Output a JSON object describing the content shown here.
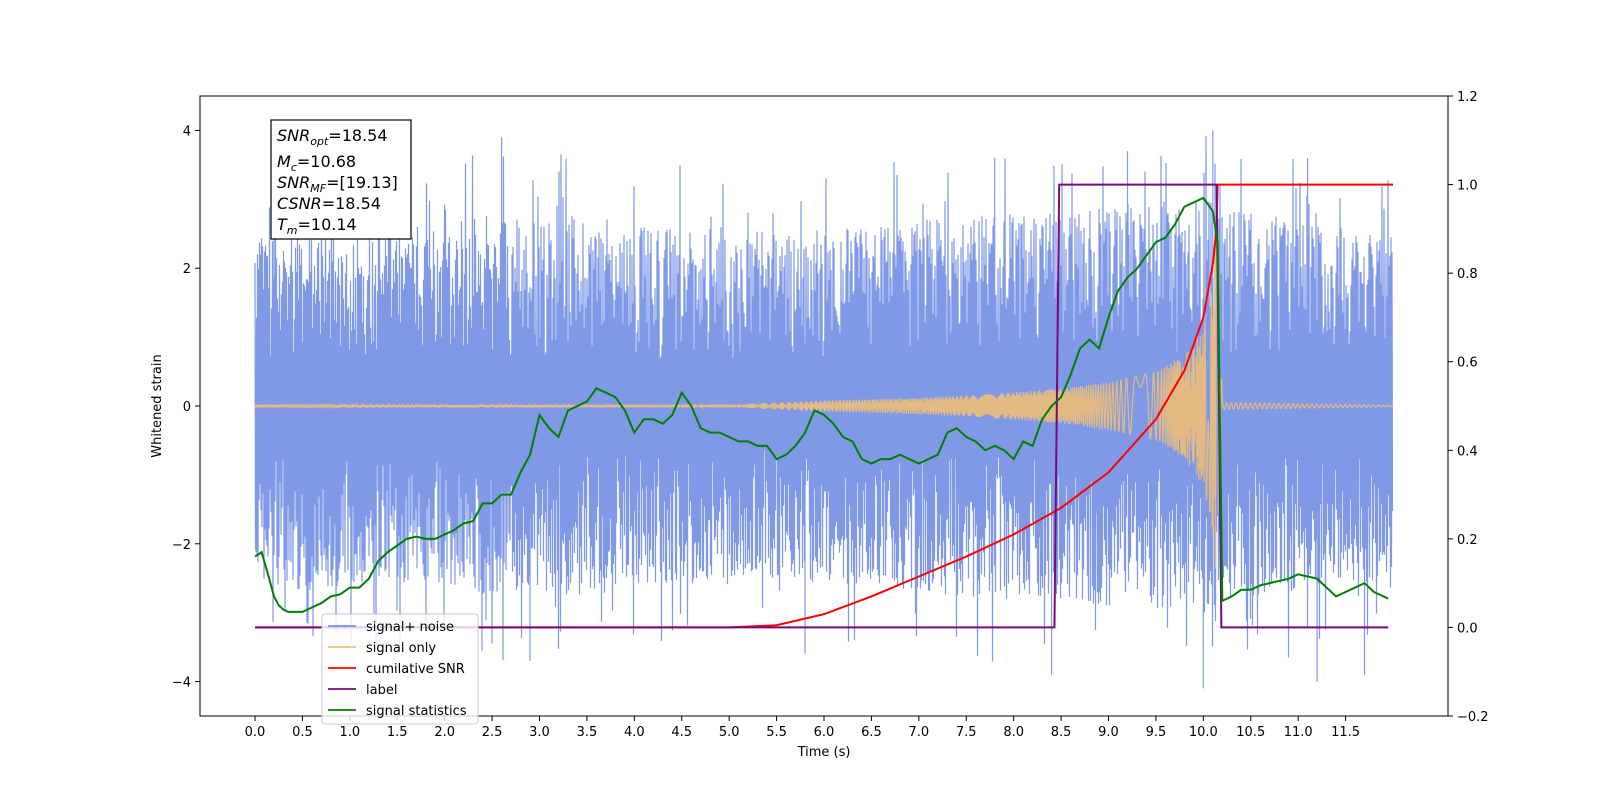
{
  "chart_data": {
    "type": "line",
    "xlabel": "Time (s)",
    "ylabel": "Whitened strain",
    "ylim_left": [
      -4.5,
      4.5
    ],
    "ylim_right": [
      -0.2,
      1.2
    ],
    "xlim": [
      -0.58,
      12.58
    ],
    "x_ticks": [
      "0.0",
      "0.5",
      "1.0",
      "1.5",
      "2.0",
      "2.5",
      "3.0",
      "3.5",
      "4.0",
      "4.5",
      "5.0",
      "5.5",
      "6.0",
      "6.5",
      "7.0",
      "7.5",
      "8.0",
      "8.5",
      "9.0",
      "9.5",
      "10.0",
      "10.5",
      "11.0",
      "11.5"
    ],
    "y_ticks_left": [
      "4",
      "2",
      "0",
      "−2",
      "−4"
    ],
    "y_ticks_right": [
      "1.2",
      "1.0",
      "0.8",
      "0.6",
      "0.4",
      "0.2",
      "0.0",
      "−0.2"
    ],
    "info_box": {
      "snr_opt": "=18.54",
      "mc": "=10.68",
      "snr_mf": "=[19.13]",
      "csnr": "=18.54",
      "tm": "=10.14"
    },
    "legend": {
      "placement": "lower-left",
      "items": [
        "signal+ noise",
        "signal only",
        "cumilative SNR",
        "label",
        "signal statistics"
      ]
    },
    "series": [
      {
        "name": "signal+ noise",
        "axis": "left",
        "color": "#7894e6",
        "x_range": [
          0.0,
          12.0
        ],
        "envelope": [
          [
            0.0,
            2.5
          ],
          [
            0.5,
            2.7
          ],
          [
            1.0,
            2.6
          ],
          [
            1.5,
            2.6
          ],
          [
            2.0,
            2.7
          ],
          [
            2.5,
            2.8
          ],
          [
            3.0,
            2.7
          ],
          [
            3.5,
            2.8
          ],
          [
            4.0,
            2.6
          ],
          [
            4.5,
            2.6
          ],
          [
            5.0,
            2.6
          ],
          [
            5.5,
            2.5
          ],
          [
            6.0,
            2.6
          ],
          [
            6.5,
            2.6
          ],
          [
            7.0,
            2.7
          ],
          [
            7.5,
            2.8
          ],
          [
            8.0,
            2.8
          ],
          [
            8.5,
            2.8
          ],
          [
            9.0,
            2.9
          ],
          [
            9.5,
            3.0
          ],
          [
            10.0,
            3.0
          ],
          [
            10.5,
            2.8
          ],
          [
            11.0,
            2.7
          ],
          [
            11.5,
            2.6
          ],
          [
            12.0,
            2.5
          ]
        ],
        "peaks": [
          [
            2.6,
            3.9
          ],
          [
            10.1,
            4.0
          ],
          [
            11.1,
            3.6
          ],
          [
            7.8,
            3.6
          ],
          [
            9.2,
            3.7
          ],
          [
            0.2,
            2.9
          ],
          [
            2.9,
            -3.7
          ],
          [
            8.4,
            -3.9
          ],
          [
            10.0,
            -4.1
          ],
          [
            11.2,
            -4.0
          ],
          [
            5.8,
            -3.6
          ],
          [
            11.7,
            -3.9
          ]
        ]
      },
      {
        "name": "signal only",
        "axis": "left",
        "color": "#f6bf71",
        "x": [
          0.0,
          5.0,
          6.0,
          7.0,
          7.5,
          8.0,
          8.5,
          9.0,
          9.5,
          9.8,
          10.0,
          10.1,
          10.14,
          10.2,
          12.0
        ],
        "amplitude": [
          0.01,
          0.02,
          0.08,
          0.12,
          0.15,
          0.2,
          0.25,
          0.35,
          0.5,
          0.75,
          1.2,
          1.8,
          3.0,
          0.05,
          0.01
        ]
      },
      {
        "name": "cumilative SNR",
        "axis": "right",
        "color": "#ff0000",
        "x": [
          0.0,
          5.0,
          5.5,
          6.0,
          6.5,
          7.0,
          7.5,
          8.0,
          8.5,
          9.0,
          9.5,
          9.8,
          10.0,
          10.1,
          10.14,
          10.15,
          12.0
        ],
        "y": [
          0.0,
          0.0,
          0.005,
          0.03,
          0.07,
          0.115,
          0.16,
          0.21,
          0.27,
          0.35,
          0.47,
          0.58,
          0.7,
          0.82,
          0.9,
          1.0,
          1.0
        ]
      },
      {
        "name": "label",
        "axis": "right",
        "color": "#7a0a7a",
        "x": [
          0.0,
          8.43,
          8.48,
          10.14,
          10.19,
          11.95
        ],
        "y": [
          0.0,
          0.0,
          1.0,
          1.0,
          0.0,
          0.0
        ]
      },
      {
        "name": "signal statistics",
        "axis": "right",
        "color": "#008000",
        "x": [
          0.0,
          0.07,
          0.15,
          0.2,
          0.25,
          0.3,
          0.35,
          0.4,
          0.5,
          0.6,
          0.7,
          0.8,
          0.9,
          1.0,
          1.1,
          1.2,
          1.3,
          1.4,
          1.5,
          1.6,
          1.7,
          1.8,
          1.9,
          2.0,
          2.1,
          2.2,
          2.3,
          2.4,
          2.5,
          2.6,
          2.7,
          2.8,
          2.9,
          3.0,
          3.1,
          3.2,
          3.3,
          3.4,
          3.5,
          3.6,
          3.7,
          3.8,
          3.9,
          4.0,
          4.1,
          4.2,
          4.3,
          4.4,
          4.5,
          4.6,
          4.7,
          4.8,
          4.9,
          5.0,
          5.1,
          5.2,
          5.3,
          5.4,
          5.5,
          5.6,
          5.7,
          5.8,
          5.9,
          6.0,
          6.1,
          6.2,
          6.3,
          6.4,
          6.5,
          6.6,
          6.7,
          6.8,
          6.9,
          7.0,
          7.1,
          7.2,
          7.3,
          7.4,
          7.5,
          7.6,
          7.7,
          7.8,
          7.9,
          8.0,
          8.1,
          8.2,
          8.3,
          8.4,
          8.5,
          8.6,
          8.7,
          8.8,
          8.9,
          9.0,
          9.1,
          9.2,
          9.3,
          9.4,
          9.5,
          9.6,
          9.7,
          9.8,
          9.9,
          10.0,
          10.1,
          10.15,
          10.2,
          10.3,
          10.4,
          10.5,
          10.6,
          10.7,
          10.8,
          10.9,
          11.0,
          11.1,
          11.2,
          11.3,
          11.4,
          11.5,
          11.6,
          11.7,
          11.8,
          11.95
        ],
        "y": [
          0.16,
          0.17,
          0.11,
          0.07,
          0.05,
          0.04,
          0.035,
          0.035,
          0.035,
          0.045,
          0.055,
          0.07,
          0.075,
          0.09,
          0.09,
          0.11,
          0.15,
          0.17,
          0.185,
          0.2,
          0.205,
          0.2,
          0.2,
          0.21,
          0.22,
          0.235,
          0.24,
          0.28,
          0.28,
          0.3,
          0.3,
          0.35,
          0.39,
          0.48,
          0.45,
          0.43,
          0.49,
          0.5,
          0.51,
          0.54,
          0.53,
          0.52,
          0.49,
          0.44,
          0.47,
          0.47,
          0.46,
          0.48,
          0.53,
          0.5,
          0.45,
          0.44,
          0.44,
          0.43,
          0.42,
          0.42,
          0.41,
          0.41,
          0.38,
          0.39,
          0.41,
          0.44,
          0.49,
          0.48,
          0.46,
          0.43,
          0.42,
          0.38,
          0.37,
          0.38,
          0.38,
          0.39,
          0.38,
          0.37,
          0.38,
          0.39,
          0.44,
          0.45,
          0.43,
          0.42,
          0.4,
          0.41,
          0.4,
          0.38,
          0.42,
          0.41,
          0.47,
          0.5,
          0.52,
          0.57,
          0.63,
          0.65,
          0.63,
          0.7,
          0.76,
          0.79,
          0.81,
          0.84,
          0.87,
          0.88,
          0.91,
          0.95,
          0.96,
          0.97,
          0.94,
          0.87,
          0.06,
          0.07,
          0.085,
          0.085,
          0.095,
          0.1,
          0.105,
          0.11,
          0.12,
          0.115,
          0.11,
          0.09,
          0.07,
          0.08,
          0.09,
          0.1,
          0.08,
          0.065
        ]
      }
    ]
  }
}
